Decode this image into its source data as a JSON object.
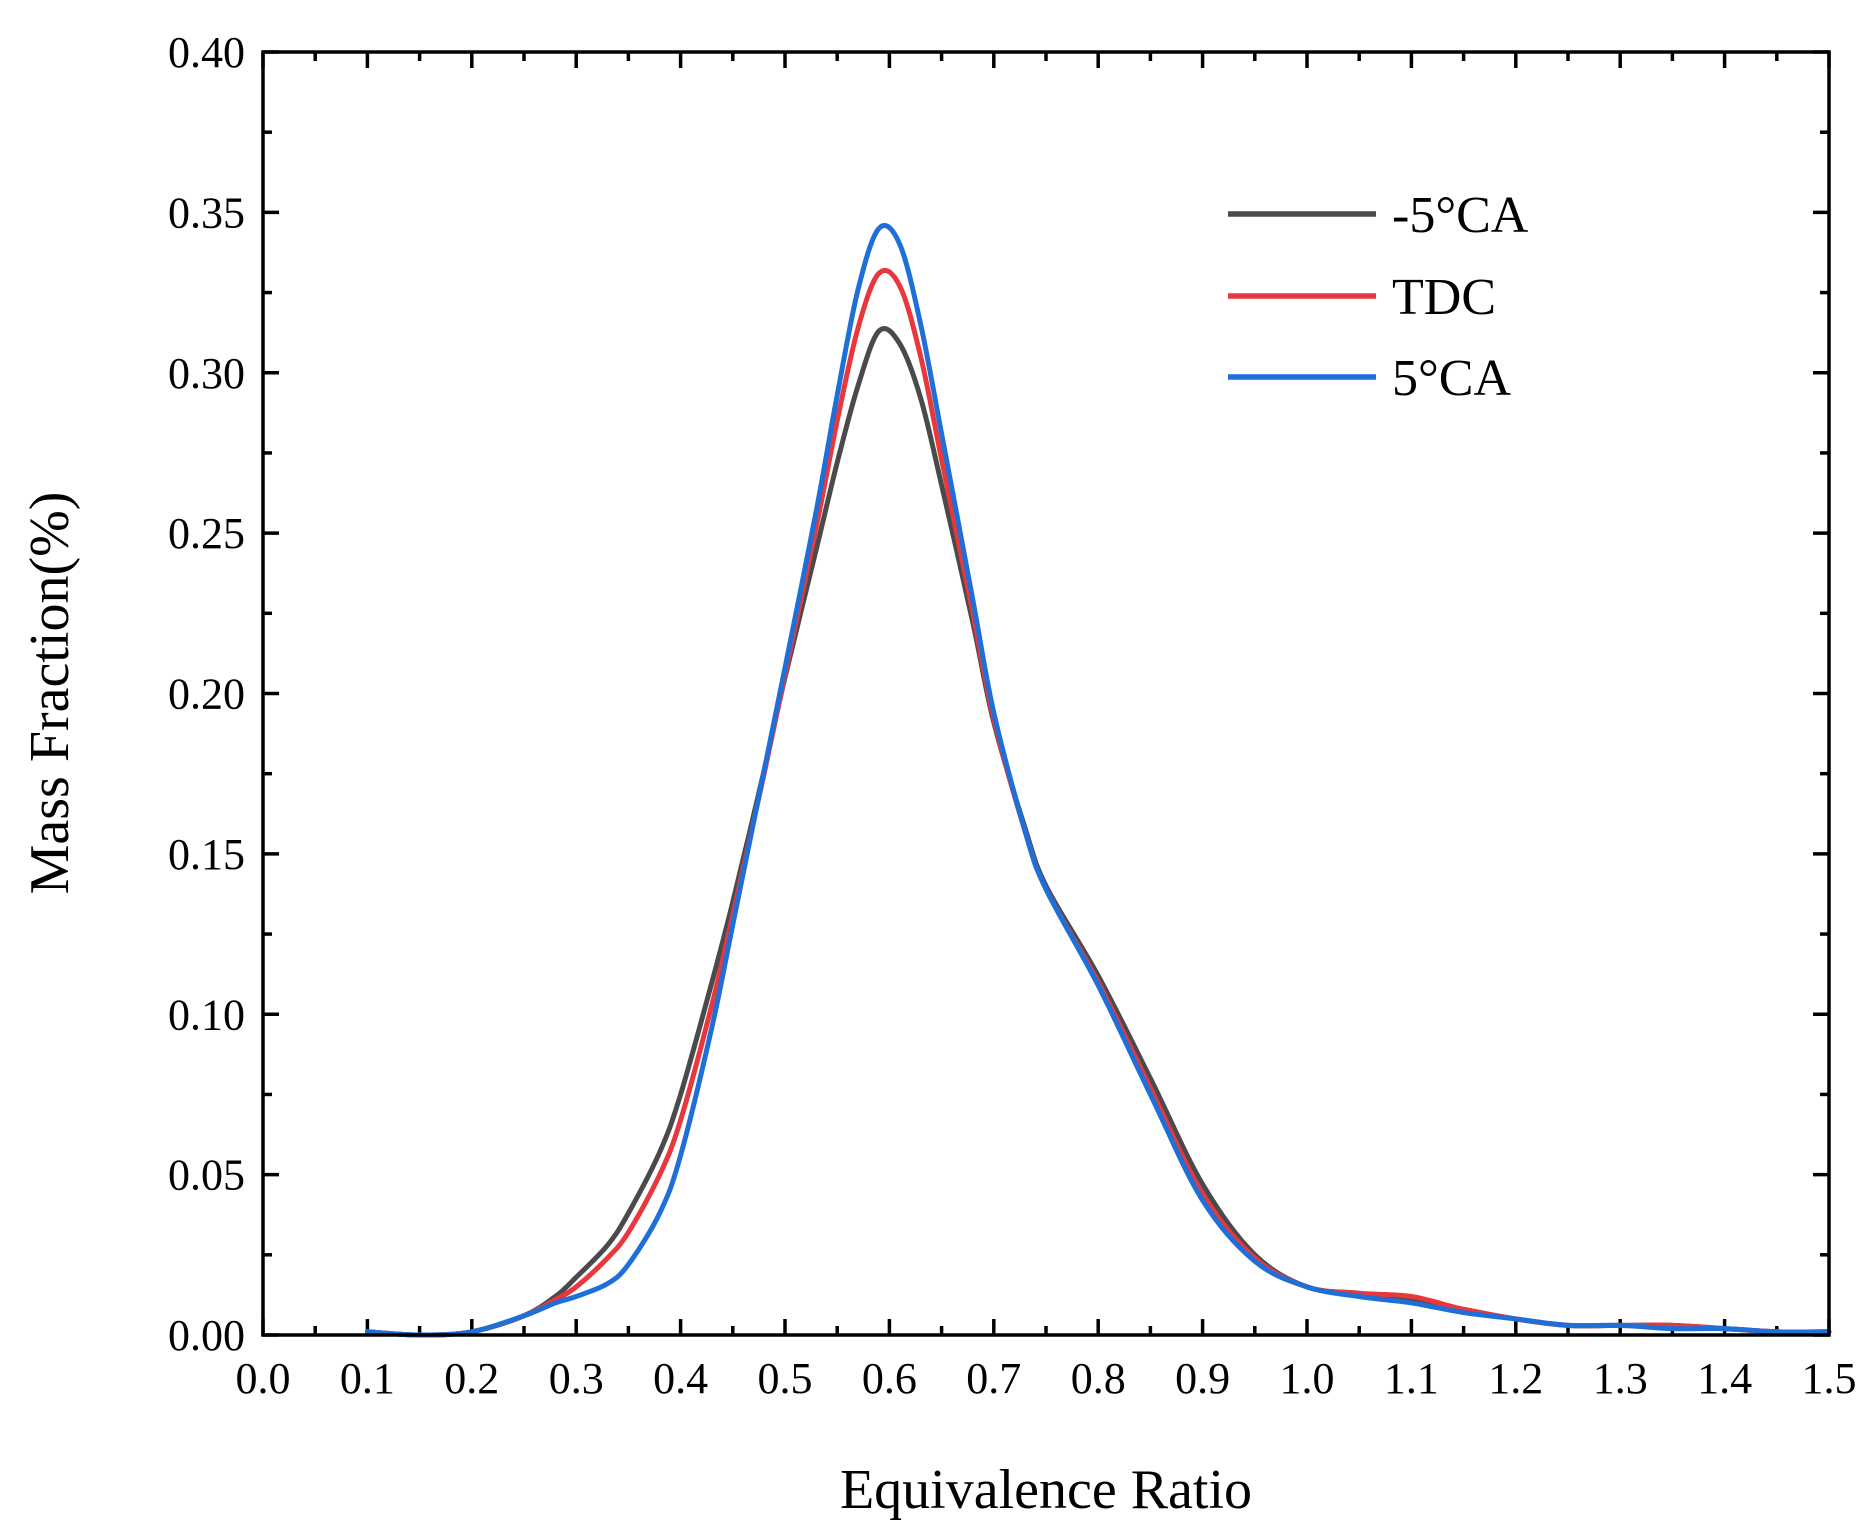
{
  "chart_data": {
    "type": "line",
    "title": "",
    "xlabel": "Equivalence Ratio",
    "ylabel": "Mass Fraction(%)",
    "xlim": [
      0.0,
      1.5
    ],
    "ylim": [
      0.0,
      0.4
    ],
    "x_major_ticks": [
      0.0,
      0.1,
      0.2,
      0.3,
      0.4,
      0.5,
      0.6,
      0.7,
      0.8,
      0.9,
      1.0,
      1.1,
      1.2,
      1.3,
      1.4,
      1.5
    ],
    "x_tick_labels": [
      "0.0",
      "0.1",
      "0.2",
      "0.3",
      "0.4",
      "0.5",
      "0.6",
      "0.7",
      "0.8",
      "0.9",
      "1.0",
      "1.1",
      "1.2",
      "1.3",
      "1.4",
      "1.5"
    ],
    "y_major_ticks": [
      0.0,
      0.05,
      0.1,
      0.15,
      0.2,
      0.25,
      0.3,
      0.35,
      0.4
    ],
    "y_tick_labels": [
      "0.00",
      "0.05",
      "0.10",
      "0.15",
      "0.20",
      "0.25",
      "0.30",
      "0.35",
      "0.40"
    ],
    "grid": false,
    "legend_position": "top-right",
    "series": [
      {
        "name": "-5°CA",
        "color": "#4a4a4a",
        "x": [
          0.1,
          0.15,
          0.2,
          0.25,
          0.28,
          0.3,
          0.33,
          0.35,
          0.38,
          0.4,
          0.43,
          0.45,
          0.48,
          0.5,
          0.53,
          0.55,
          0.57,
          0.59,
          0.61,
          0.63,
          0.65,
          0.68,
          0.7,
          0.73,
          0.75,
          0.8,
          0.85,
          0.9,
          0.95,
          1.0,
          1.05,
          1.1,
          1.15,
          1.2,
          1.25,
          1.3,
          1.35,
          1.4,
          1.45,
          1.5
        ],
        "values": [
          0.001,
          0.0,
          0.001,
          0.006,
          0.012,
          0.018,
          0.028,
          0.038,
          0.057,
          0.075,
          0.11,
          0.135,
          0.176,
          0.205,
          0.245,
          0.272,
          0.296,
          0.313,
          0.309,
          0.292,
          0.265,
          0.222,
          0.191,
          0.158,
          0.14,
          0.112,
          0.08,
          0.047,
          0.025,
          0.015,
          0.013,
          0.011,
          0.008,
          0.005,
          0.003,
          0.003,
          0.003,
          0.002,
          0.001,
          0.001
        ]
      },
      {
        "name": "TDC",
        "color": "#e8383d",
        "x": [
          0.1,
          0.15,
          0.2,
          0.25,
          0.28,
          0.3,
          0.33,
          0.35,
          0.38,
          0.4,
          0.43,
          0.45,
          0.48,
          0.5,
          0.53,
          0.55,
          0.57,
          0.59,
          0.61,
          0.63,
          0.65,
          0.68,
          0.7,
          0.73,
          0.75,
          0.8,
          0.85,
          0.9,
          0.95,
          1.0,
          1.05,
          1.1,
          1.15,
          1.2,
          1.25,
          1.3,
          1.35,
          1.4,
          1.45,
          1.5
        ],
        "values": [
          0.001,
          0.0,
          0.001,
          0.006,
          0.011,
          0.015,
          0.024,
          0.032,
          0.05,
          0.067,
          0.103,
          0.131,
          0.175,
          0.206,
          0.252,
          0.285,
          0.314,
          0.331,
          0.327,
          0.305,
          0.273,
          0.225,
          0.192,
          0.157,
          0.139,
          0.11,
          0.077,
          0.044,
          0.024,
          0.015,
          0.013,
          0.012,
          0.008,
          0.005,
          0.003,
          0.003,
          0.003,
          0.002,
          0.001,
          0.001
        ]
      },
      {
        "name": "5°CA",
        "color": "#1f6fd8",
        "x": [
          0.1,
          0.15,
          0.2,
          0.25,
          0.28,
          0.3,
          0.33,
          0.35,
          0.38,
          0.4,
          0.43,
          0.45,
          0.48,
          0.5,
          0.53,
          0.55,
          0.57,
          0.59,
          0.61,
          0.63,
          0.65,
          0.68,
          0.7,
          0.73,
          0.75,
          0.8,
          0.85,
          0.9,
          0.95,
          1.0,
          1.05,
          1.1,
          1.15,
          1.2,
          1.25,
          1.3,
          1.35,
          1.4,
          1.45,
          1.5
        ],
        "values": [
          0.001,
          0.0,
          0.001,
          0.006,
          0.01,
          0.012,
          0.016,
          0.022,
          0.038,
          0.056,
          0.096,
          0.128,
          0.176,
          0.208,
          0.257,
          0.293,
          0.326,
          0.345,
          0.34,
          0.315,
          0.281,
          0.229,
          0.194,
          0.157,
          0.139,
          0.109,
          0.075,
          0.042,
          0.023,
          0.015,
          0.012,
          0.01,
          0.007,
          0.005,
          0.003,
          0.003,
          0.002,
          0.002,
          0.001,
          0.001
        ]
      }
    ]
  }
}
